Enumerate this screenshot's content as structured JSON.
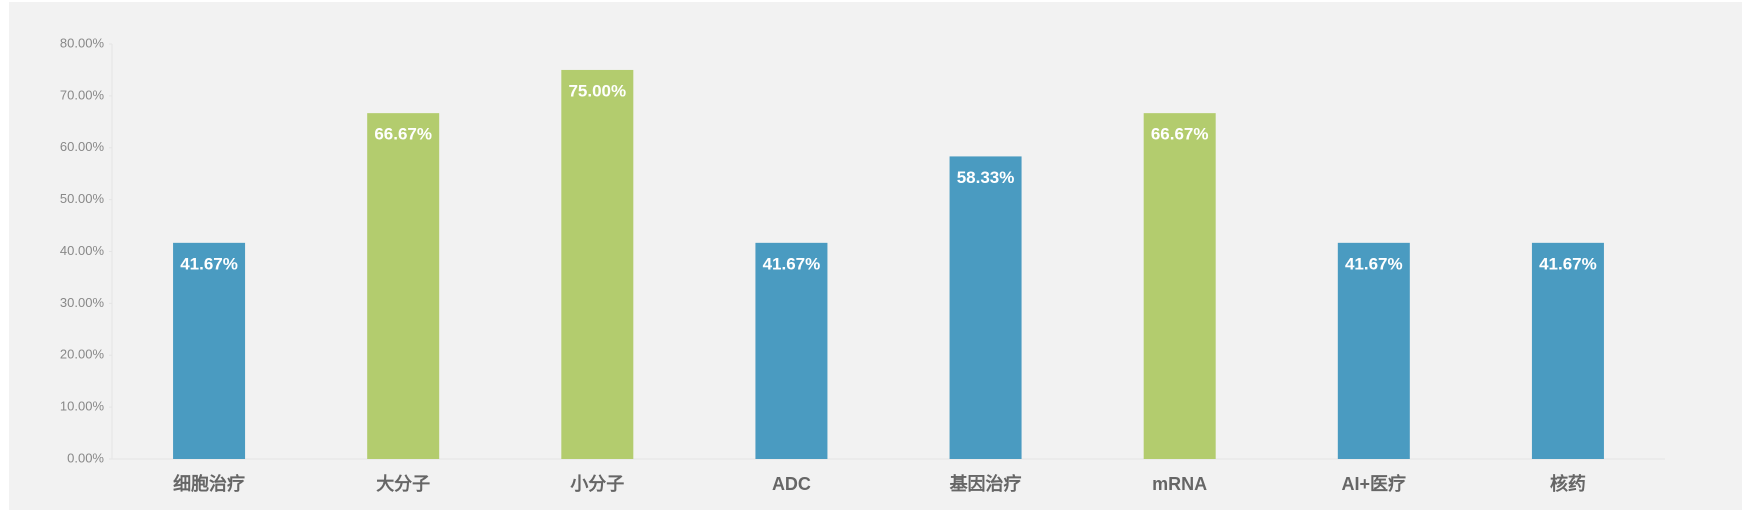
{
  "chart_data": {
    "type": "bar",
    "categories": [
      "细胞治疗",
      "大分子",
      "小分子",
      "ADC",
      "基因治疗",
      "mRNA",
      "AI+医疗",
      "核药"
    ],
    "values": [
      41.67,
      66.67,
      75,
      41.67,
      58.33,
      66.67,
      41.67,
      41.67
    ],
    "value_labels": [
      "41.67%",
      "66.67%",
      "75.00%",
      "41.67%",
      "58.33%",
      "66.67%",
      "41.67%",
      "41.67%"
    ],
    "colors": [
      "#4a9bc1",
      "#b3cc6e",
      "#b3cc6e",
      "#4a9bc1",
      "#4a9bc1",
      "#b3cc6e",
      "#4a9bc1",
      "#4a9bc1"
    ],
    "ylim": [
      0,
      80
    ],
    "yticks": [
      {
        "value": 0,
        "label": "0.00%"
      },
      {
        "value": 10,
        "label": "10.00%"
      },
      {
        "value": 20,
        "label": "20.00%"
      },
      {
        "value": 30,
        "label": "30.00%"
      },
      {
        "value": 40,
        "label": "40.00%"
      },
      {
        "value": 50,
        "label": "50.00%"
      },
      {
        "value": 60,
        "label": "60.00%"
      },
      {
        "value": 70,
        "label": "70.00%"
      },
      {
        "value": 80,
        "label": "80.00%"
      }
    ],
    "grid": false
  }
}
